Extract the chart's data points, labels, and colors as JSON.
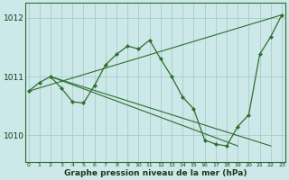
{
  "xlabel": "Graphe pression niveau de la mer (hPa)",
  "background_color": "#cce8e8",
  "grid_color": "#aacccc",
  "line_color": "#2d6e2d",
  "ylim": [
    1009.55,
    1012.25
  ],
  "xlim": [
    -0.3,
    23.3
  ],
  "yticks": [
    1010,
    1011,
    1012
  ],
  "xticks": [
    0,
    1,
    2,
    3,
    4,
    5,
    6,
    7,
    8,
    9,
    10,
    11,
    12,
    13,
    14,
    15,
    16,
    17,
    18,
    19,
    20,
    21,
    22,
    23
  ],
  "squiggly": {
    "x": [
      0,
      1,
      2,
      3,
      4,
      5,
      6,
      7,
      8,
      9,
      10,
      11,
      12,
      13,
      14,
      15,
      16,
      17,
      18,
      19,
      20,
      21,
      22,
      23
    ],
    "y": [
      1010.75,
      1010.9,
      1011.0,
      1010.8,
      1010.57,
      1010.55,
      1010.85,
      1011.2,
      1011.38,
      1011.52,
      1011.47,
      1011.62,
      1011.3,
      1011.0,
      1010.65,
      1010.45,
      1009.92,
      1009.85,
      1009.82,
      1010.15,
      1010.35,
      1011.38,
      1011.68,
      1012.05
    ]
  },
  "trend_up": {
    "x": [
      0,
      23
    ],
    "y": [
      1010.75,
      1012.05
    ]
  },
  "trend_down": {
    "x": [
      2,
      19
    ],
    "y": [
      1011.0,
      1009.82
    ]
  },
  "trend_down2": {
    "x": [
      2,
      22
    ],
    "y": [
      1011.0,
      1009.82
    ]
  }
}
